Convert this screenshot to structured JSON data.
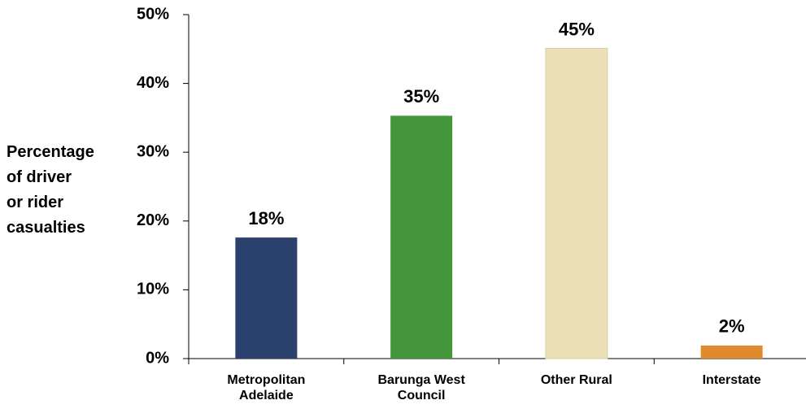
{
  "chart_data": {
    "type": "bar",
    "ylabel": [
      "Percentage",
      "of driver",
      "or rider",
      "casualties"
    ],
    "categories": [
      "Metropolitan Adelaide",
      "Barunga West Council",
      "Other Rural",
      "Interstate"
    ],
    "values": [
      17.6,
      35.3,
      45.1,
      1.9
    ],
    "value_labels": [
      "18%",
      "35%",
      "45%",
      "2%"
    ],
    "colors": [
      "#2a416e",
      "#43973a",
      "#ebe0b8",
      "#e08a2e"
    ],
    "ylim": [
      0,
      50
    ],
    "yticks": [
      {
        "value": 0,
        "label": "0%"
      },
      {
        "value": 10,
        "label": "10%"
      },
      {
        "value": 20,
        "label": "20%"
      },
      {
        "value": 30,
        "label": "30%"
      },
      {
        "value": 40,
        "label": "40%"
      },
      {
        "value": 50,
        "label": "50%"
      }
    ],
    "grid": false
  }
}
